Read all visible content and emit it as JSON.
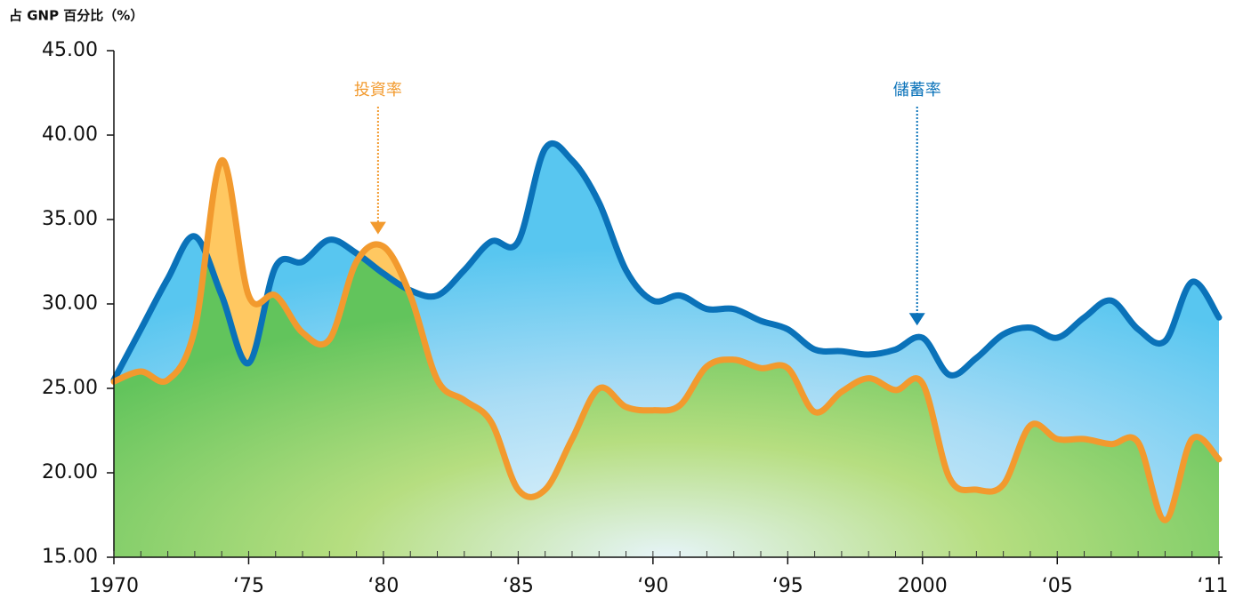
{
  "chart_data": {
    "type": "area",
    "y_label": "占 GNP 百分比（%）",
    "x": [
      1970,
      1971,
      1972,
      1973,
      1974,
      1975,
      1976,
      1977,
      1978,
      1979,
      1980,
      1981,
      1982,
      1983,
      1984,
      1985,
      1986,
      1987,
      1988,
      1989,
      1990,
      1991,
      1992,
      1993,
      1994,
      1995,
      1996,
      1997,
      1998,
      1999,
      2000,
      2001,
      2002,
      2003,
      2004,
      2005,
      2006,
      2007,
      2008,
      2009,
      2010,
      2011
    ],
    "series": [
      {
        "name": "儲蓄率",
        "color": "#0a72b9",
        "values": [
          25.5,
          28.5,
          31.5,
          34.0,
          30.5,
          26.5,
          32.2,
          32.5,
          33.8,
          33.0,
          31.8,
          30.8,
          30.5,
          32.0,
          33.7,
          33.7,
          39.2,
          38.5,
          36.0,
          32.0,
          30.2,
          30.5,
          29.7,
          29.7,
          29.0,
          28.5,
          27.3,
          27.2,
          27.0,
          27.3,
          28.0,
          25.8,
          26.8,
          28.2,
          28.6,
          28.0,
          29.2,
          30.2,
          28.5,
          27.8,
          31.3,
          29.2
        ]
      },
      {
        "name": "投資率",
        "color": "#f29a2e",
        "values": [
          25.4,
          26.0,
          25.5,
          28.5,
          38.5,
          30.5,
          30.5,
          28.3,
          27.9,
          32.5,
          33.4,
          30.5,
          25.5,
          24.3,
          23.0,
          19.0,
          19.0,
          22.0,
          25.0,
          23.9,
          23.7,
          24.0,
          26.3,
          26.7,
          26.2,
          26.2,
          23.6,
          24.8,
          25.6,
          24.9,
          25.3,
          19.7,
          19.0,
          19.3,
          22.8,
          22.0,
          22.0,
          21.7,
          21.8,
          17.2,
          22.0,
          20.8
        ]
      }
    ],
    "annotations": [
      {
        "text": "投資率",
        "series": 1,
        "x": 1979.8,
        "y": 33.6
      },
      {
        "text": "儲蓄率",
        "series": 0,
        "x": 1999.8,
        "y": 28.2
      }
    ],
    "xlim": [
      1970,
      2011
    ],
    "xticks": [
      1970,
      {
        "value": 1975,
        "label": "‘75"
      },
      {
        "value": 1980,
        "label": "‘80"
      },
      {
        "value": 1985,
        "label": "‘85"
      },
      {
        "value": 1990,
        "label": "‘90"
      },
      {
        "value": 1995,
        "label": "‘95"
      },
      2000,
      {
        "value": 2005,
        "label": "‘05"
      },
      {
        "value": 2011,
        "label": "‘11"
      }
    ],
    "ylim": [
      15,
      45
    ],
    "yticks": [
      {
        "value": 15,
        "label": "15.00"
      },
      {
        "value": 20,
        "label": "20.00"
      },
      {
        "value": 25,
        "label": "25.00"
      },
      {
        "value": 30,
        "label": "30.00"
      },
      {
        "value": 35,
        "label": "35.00"
      },
      {
        "value": 40,
        "label": "40.00"
      },
      {
        "value": 45,
        "label": "45.00"
      }
    ]
  }
}
